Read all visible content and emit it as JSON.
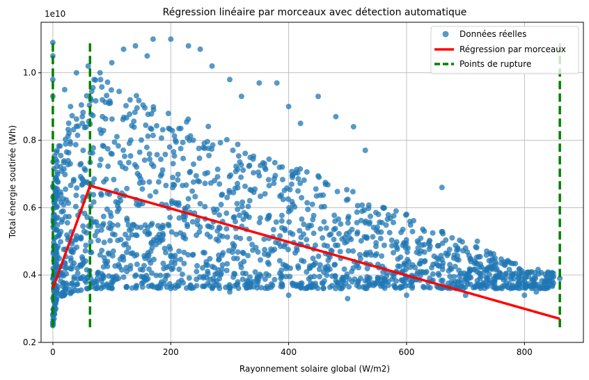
{
  "chart_data": {
    "type": "scatter",
    "title": "Régression linéaire par morceaux avec détection automatique",
    "xlabel": "Rayonnement solaire global (W/m2)",
    "ylabel": "Total énergie soutirée (Wh)",
    "y_offset_label": "1e10",
    "xlim": [
      -20,
      900
    ],
    "ylim": [
      0.2,
      1.15
    ],
    "xticks": [
      0,
      200,
      400,
      600,
      800
    ],
    "yticks": [
      0.2,
      0.4,
      0.6,
      0.8,
      1.0
    ],
    "grid": true,
    "legend_position": "top-right",
    "legend": [
      "Données réelles",
      "Régression par morceaux",
      "Points de rupture"
    ],
    "colors": {
      "scatter": "#1f77b4",
      "regression": "#ff0000",
      "breakpoints": "#008000"
    },
    "series": [
      {
        "name": "Données réelles",
        "kind": "scatter",
        "note": "dense cloud of several thousand points",
        "points": [
          [
            0,
            1.09
          ],
          [
            0,
            1.05
          ],
          [
            0,
            0.98
          ],
          [
            0,
            0.93
          ],
          [
            0,
            0.25
          ],
          [
            2,
            0.27
          ],
          [
            5,
            0.3
          ],
          [
            10,
            0.4
          ],
          [
            20,
            0.95
          ],
          [
            30,
            0.9
          ],
          [
            40,
            1.0
          ],
          [
            50,
            0.85
          ],
          [
            60,
            1.02
          ],
          [
            70,
            0.98
          ],
          [
            80,
            1.0
          ],
          [
            100,
            1.03
          ],
          [
            120,
            1.07
          ],
          [
            140,
            1.08
          ],
          [
            160,
            1.05
          ],
          [
            170,
            1.1
          ],
          [
            200,
            1.1
          ],
          [
            230,
            1.08
          ],
          [
            250,
            1.07
          ],
          [
            270,
            1.02
          ],
          [
            300,
            0.98
          ],
          [
            320,
            0.93
          ],
          [
            350,
            0.97
          ],
          [
            380,
            0.97
          ],
          [
            400,
            0.9
          ],
          [
            420,
            0.85
          ],
          [
            450,
            0.93
          ],
          [
            480,
            0.87
          ],
          [
            510,
            0.84
          ],
          [
            530,
            0.77
          ],
          [
            560,
            0.6
          ],
          [
            600,
            0.58
          ],
          [
            630,
            0.53
          ],
          [
            660,
            0.66
          ],
          [
            680,
            0.45
          ],
          [
            700,
            0.48
          ],
          [
            720,
            0.5
          ],
          [
            750,
            0.45
          ],
          [
            780,
            0.4
          ],
          [
            800,
            0.38
          ],
          [
            820,
            0.35
          ],
          [
            860,
            0.39
          ],
          [
            100,
            0.38
          ],
          [
            200,
            0.36
          ],
          [
            300,
            0.35
          ],
          [
            400,
            0.34
          ],
          [
            500,
            0.33
          ],
          [
            600,
            0.34
          ],
          [
            700,
            0.34
          ],
          [
            800,
            0.34
          ]
        ]
      },
      {
        "name": "Régression par morceaux",
        "kind": "line",
        "x": [
          0,
          63,
          860
        ],
        "y": [
          0.36,
          0.665,
          0.27
        ]
      },
      {
        "name": "Points de rupture",
        "kind": "vlines",
        "x": [
          0,
          63,
          860
        ],
        "ymin": 0.245,
        "ymax": 1.1
      }
    ]
  }
}
